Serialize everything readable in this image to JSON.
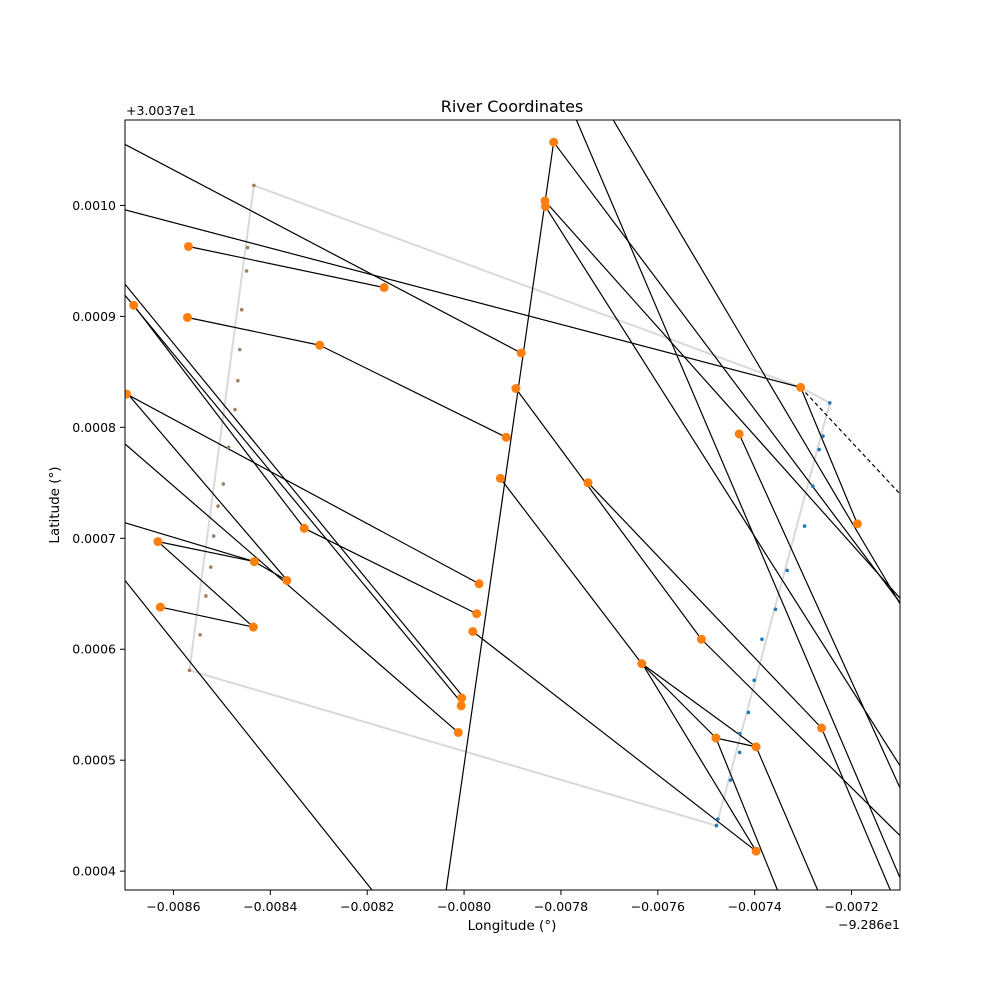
{
  "chart_data": {
    "type": "scatter",
    "title": "River Coordinates",
    "xlabel": "Longitude (°)",
    "ylabel": "Latitude (°)",
    "x_offset_label": "−9.286e1",
    "y_offset_label": "+3.0037e1",
    "x_offset": -92.86,
    "y_offset": 30.037,
    "xlim": [
      -0.0087,
      -0.0071
    ],
    "ylim": [
      0.000383,
      0.001077
    ],
    "x_ticks": [
      -0.0086,
      -0.0084,
      -0.0082,
      -0.008,
      -0.0078,
      -0.0076,
      -0.0074,
      -0.0072
    ],
    "x_tick_labels": [
      "−0.0086",
      "−0.0084",
      "−0.0082",
      "−0.0080",
      "−0.0078",
      "−0.0076",
      "−0.0074",
      "−0.0072"
    ],
    "y_ticks": [
      0.0004,
      0.0005,
      0.0006,
      0.0007,
      0.0008,
      0.0009,
      0.001
    ],
    "y_tick_labels": [
      "0.0004",
      "0.0005",
      "0.0006",
      "0.0007",
      "0.0008",
      "0.0009",
      "0.0010"
    ],
    "grid": false,
    "colors": {
      "left_bank": "#a08060",
      "right_bank": "#1f77b4",
      "intersections": "#ff7f0e",
      "lines": "#000000",
      "outline": "#d9d9d9"
    },
    "outline": [
      [
        -0.008434,
        0.001018
      ],
      [
        -0.007305,
        0.000836
      ],
      [
        -0.007245,
        0.000822
      ],
      [
        -0.007479,
        0.000441
      ],
      [
        -0.008567,
        0.000581
      ],
      [
        -0.008434,
        0.001018
      ]
    ],
    "left_bank_points": [
      [
        -0.008434,
        0.001018
      ],
      [
        -0.008447,
        0.000962
      ],
      [
        -0.008449,
        0.000941
      ],
      [
        -0.008459,
        0.000906
      ],
      [
        -0.008463,
        0.00087
      ],
      [
        -0.008467,
        0.000842
      ],
      [
        -0.008473,
        0.000816
      ],
      [
        -0.008486,
        0.000782
      ],
      [
        -0.008497,
        0.000749
      ],
      [
        -0.008508,
        0.000729
      ],
      [
        -0.008517,
        0.000702
      ],
      [
        -0.008523,
        0.000674
      ],
      [
        -0.008533,
        0.000648
      ],
      [
        -0.008545,
        0.000613
      ],
      [
        -0.008567,
        0.000581
      ]
    ],
    "right_bank_points": [
      [
        -0.007245,
        0.000822
      ],
      [
        -0.007259,
        0.000792
      ],
      [
        -0.007267,
        0.00078
      ],
      [
        -0.00728,
        0.000747
      ],
      [
        -0.007297,
        0.000711
      ],
      [
        -0.007333,
        0.000671
      ],
      [
        -0.007357,
        0.000636
      ],
      [
        -0.007385,
        0.000609
      ],
      [
        -0.007401,
        0.000572
      ],
      [
        -0.007413,
        0.000543
      ],
      [
        -0.007431,
        0.000524
      ],
      [
        -0.007431,
        0.000507
      ],
      [
        -0.00745,
        0.000482
      ],
      [
        -0.007476,
        0.000447
      ],
      [
        -0.007479,
        0.000441
      ]
    ],
    "intersection_points": [
      [
        -0.007815,
        0.001057
      ],
      [
        -0.007833,
        0.001004
      ],
      [
        -0.007832,
        0.000999
      ],
      [
        -0.008569,
        0.000963
      ],
      [
        -0.008165,
        0.000926
      ],
      [
        -0.008682,
        0.00091
      ],
      [
        -0.008571,
        0.000899
      ],
      [
        -0.008298,
        0.000874
      ],
      [
        -0.007882,
        0.000867
      ],
      [
        -0.007893,
        0.000835
      ],
      [
        -0.008697,
        0.00083
      ],
      [
        -0.007305,
        0.000836
      ],
      [
        -0.007432,
        0.000794
      ],
      [
        -0.007913,
        0.000791
      ],
      [
        -0.007925,
        0.000754
      ],
      [
        -0.007744,
        0.00075
      ],
      [
        -0.007188,
        0.000713
      ],
      [
        -0.00833,
        0.000709
      ],
      [
        -0.008632,
        0.000697
      ],
      [
        -0.008433,
        0.000679
      ],
      [
        -0.007969,
        0.000659
      ],
      [
        -0.008366,
        0.000662
      ],
      [
        -0.007974,
        0.000632
      ],
      [
        -0.008627,
        0.000638
      ],
      [
        -0.008435,
        0.00062
      ],
      [
        -0.007982,
        0.000616
      ],
      [
        -0.00751,
        0.000609
      ],
      [
        -0.007633,
        0.000587
      ],
      [
        -0.008005,
        0.000556
      ],
      [
        -0.008006,
        0.000549
      ],
      [
        -0.007262,
        0.000529
      ],
      [
        -0.008012,
        0.000525
      ],
      [
        -0.00748,
        0.00052
      ],
      [
        -0.007397,
        0.000512
      ],
      [
        -0.007397,
        0.000418
      ]
    ],
    "segments": [
      [
        [
          -0.0087,
          0.001055
        ],
        [
          -0.007882,
          0.000867
        ]
      ],
      [
        [
          -0.0087,
          0.000996
        ],
        [
          -0.007305,
          0.000836
        ]
      ],
      [
        [
          -0.0087,
          0.000929
        ],
        [
          -0.008,
          0.000556
        ]
      ],
      [
        [
          -0.0087,
          0.000919
        ],
        [
          -0.008,
          0.000549
        ]
      ],
      [
        [
          -0.0087,
          0.000833
        ],
        [
          -0.008365,
          0.000662
        ]
      ],
      [
        [
          -0.0087,
          0.000785
        ],
        [
          -0.008012,
          0.000525
        ]
      ],
      [
        [
          -0.0087,
          0.000714
        ],
        [
          -0.008433,
          0.000679
        ]
      ],
      [
        [
          -0.0087,
          0.000662
        ],
        [
          -0.00819,
          0.000383
        ]
      ],
      [
        [
          -0.008569,
          0.000963
        ],
        [
          -0.008165,
          0.000926
        ]
      ],
      [
        [
          -0.008571,
          0.000899
        ],
        [
          -0.008298,
          0.000874
        ]
      ],
      [
        [
          -0.008298,
          0.000874
        ],
        [
          -0.007913,
          0.000791
        ]
      ],
      [
        [
          -0.008682,
          0.00091
        ],
        [
          -0.00833,
          0.000709
        ]
      ],
      [
        [
          -0.008697,
          0.00083
        ],
        [
          -0.007969,
          0.000659
        ]
      ],
      [
        [
          -0.008632,
          0.000697
        ],
        [
          -0.008433,
          0.000679
        ]
      ],
      [
        [
          -0.008632,
          0.000697
        ],
        [
          -0.008435,
          0.00062
        ]
      ],
      [
        [
          -0.008627,
          0.000638
        ],
        [
          -0.008435,
          0.00062
        ]
      ],
      [
        [
          -0.008433,
          0.000679
        ],
        [
          -0.008366,
          0.000662
        ]
      ],
      [
        [
          -0.00833,
          0.000709
        ],
        [
          -0.007974,
          0.000632
        ]
      ],
      [
        [
          -0.007982,
          0.000616
        ],
        [
          -0.007397,
          0.000418
        ]
      ],
      [
        [
          -0.007925,
          0.000754
        ],
        [
          -0.007633,
          0.000587
        ]
      ],
      [
        [
          -0.007893,
          0.000835
        ],
        [
          -0.00751,
          0.000609
        ]
      ],
      [
        [
          -0.007633,
          0.000587
        ],
        [
          -0.00748,
          0.00052
        ]
      ],
      [
        [
          -0.00748,
          0.00052
        ],
        [
          -0.007397,
          0.000512
        ]
      ],
      [
        [
          -0.007633,
          0.000587
        ],
        [
          -0.007397,
          0.000512
        ]
      ],
      [
        [
          -0.007744,
          0.00075
        ],
        [
          -0.007262,
          0.000529
        ]
      ],
      [
        [
          -0.00751,
          0.000609
        ],
        [
          -0.0071,
          0.000432
        ]
      ],
      [
        [
          -0.007432,
          0.000794
        ],
        [
          -0.0071,
          0.000475
        ]
      ],
      [
        [
          -0.007305,
          0.000836
        ],
        [
          -0.007188,
          0.000713
        ]
      ],
      [
        [
          -0.007815,
          0.001057
        ],
        [
          -0.0071,
          0.000642
        ]
      ],
      [
        [
          -0.007832,
          0.000999
        ],
        [
          -0.0071,
          0.000495
        ]
      ],
      [
        [
          -0.007833,
          0.001004
        ],
        [
          -0.0071,
          0.000646
        ]
      ],
      [
        [
          -0.007768,
          0.001077
        ],
        [
          -0.0071,
          0.000394
        ]
      ],
      [
        [
          -0.007692,
          0.001077
        ],
        [
          -0.0071,
          0.000641
        ]
      ],
      [
        [
          -0.007632,
          0.000587
        ],
        [
          -0.007397,
          0.000418
        ]
      ],
      [
        [
          -0.00748,
          0.00052
        ],
        [
          -0.007353,
          0.000383
        ]
      ],
      [
        [
          -0.007397,
          0.000512
        ],
        [
          -0.00727,
          0.000383
        ]
      ],
      [
        [
          -0.007262,
          0.000529
        ],
        [
          -0.00712,
          0.000383
        ]
      ],
      [
        [
          -0.008037,
          0.000383
        ],
        [
          -0.007815,
          0.001057
        ]
      ]
    ],
    "dashed_segment": [
      [
        -0.007305,
        0.000836
      ],
      [
        -0.0071,
        0.00074
      ]
    ]
  }
}
